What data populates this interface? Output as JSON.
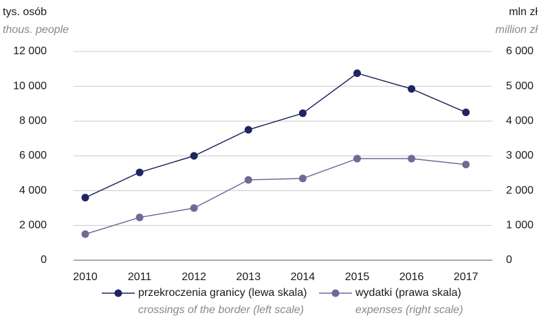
{
  "chart_data": {
    "type": "line",
    "y_label": "tys. osób",
    "y_label_en": "thous. people",
    "y2_label": "mln zł",
    "y2_label_en": "million zł",
    "categories": [
      "2010",
      "2011",
      "2012",
      "2013",
      "2014",
      "2015",
      "2016",
      "2017"
    ],
    "ylim": [
      0,
      12000
    ],
    "yticks": [
      0,
      {
        "value": 2000,
        "label": "2 000"
      },
      {
        "value": 4000,
        "label": "4 000"
      },
      {
        "value": 6000,
        "label": "6 000"
      },
      {
        "value": 8000,
        "label": "8 000"
      },
      {
        "value": 10000,
        "label": "10 000"
      },
      {
        "value": 12000,
        "label": "12 000"
      }
    ],
    "y2lim": [
      0,
      6000
    ],
    "y2ticks": [
      0,
      {
        "value": 1000,
        "label": "1 000"
      },
      {
        "value": 2000,
        "label": "2 000"
      },
      {
        "value": 3000,
        "label": "3 000"
      },
      {
        "value": 4000,
        "label": "4 000"
      },
      {
        "value": 5000,
        "label": "5 000"
      },
      {
        "value": 6000,
        "label": "6 000"
      }
    ],
    "grid": true,
    "series": [
      {
        "name": "przekroczenia granicy (lewa skala)",
        "name_en": "crossings of the border (left scale)",
        "color": "#1f2560",
        "values": [
          3600,
          5050,
          6000,
          7500,
          8450,
          10750,
          9850,
          8500
        ]
      },
      {
        "name": "wydatki (prawa skala)",
        "name_en": "expenses (right scale)",
        "color": "#6e6a96",
        "axis": "y2",
        "values": [
          750,
          1230,
          1500,
          2310,
          2350,
          2920,
          2920,
          2750
        ]
      }
    ]
  }
}
